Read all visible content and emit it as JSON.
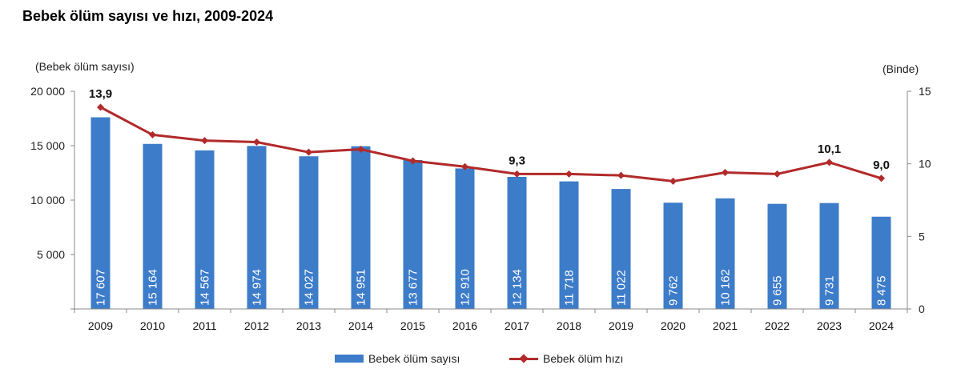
{
  "chart_data": {
    "type": "bar",
    "title": "Bebek ölüm sayısı ve hızı, 2009-2024",
    "left_axis_label": "(Bebek ölüm sayısı)",
    "right_axis_label": "(Binde)",
    "categories": [
      "2009",
      "2010",
      "2011",
      "2012",
      "2013",
      "2014",
      "2015",
      "2016",
      "2017",
      "2018",
      "2019",
      "2020",
      "2021",
      "2022",
      "2023",
      "2024"
    ],
    "series": [
      {
        "name": "Bebek ölüm sayısı",
        "type": "bar",
        "axis": "left",
        "color": "#3d7cc9",
        "values": [
          17607,
          15164,
          14567,
          14974,
          14027,
          14951,
          13677,
          12910,
          12134,
          11718,
          11022,
          9762,
          10162,
          9655,
          9731,
          8475
        ],
        "labels": [
          "17 607",
          "15 164",
          "14 567",
          "14 974",
          "14 027",
          "14 951",
          "13 677",
          "12 910",
          "12 134",
          "11 718",
          "11 022",
          "9 762",
          "10 162",
          "9 655",
          "9 731",
          "8 475"
        ]
      },
      {
        "name": "Bebek ölüm hızı",
        "type": "line",
        "axis": "right",
        "color": "#b22a2a",
        "values": [
          13.9,
          12.0,
          11.6,
          11.5,
          10.8,
          11.0,
          10.2,
          9.8,
          9.3,
          9.3,
          9.2,
          8.8,
          9.4,
          9.3,
          10.1,
          9.0
        ],
        "point_labels": [
          {
            "index": 0,
            "text": "13,9"
          },
          {
            "index": 8,
            "text": "9,3"
          },
          {
            "index": 14,
            "text": "10,1"
          },
          {
            "index": 15,
            "text": "9,0"
          }
        ]
      }
    ],
    "y_left": {
      "min": 0,
      "max": 20000,
      "ticks": [
        0,
        5000,
        10000,
        15000,
        20000
      ],
      "tick_labels": [
        "",
        "5 000",
        "10 000",
        "15 000",
        "20 000"
      ]
    },
    "y_right": {
      "min": 0,
      "max": 15,
      "ticks": [
        0,
        5,
        10,
        15
      ],
      "tick_labels": [
        "0",
        "5",
        "10",
        "15"
      ]
    },
    "grid": false,
    "legend_position": "bottom"
  }
}
